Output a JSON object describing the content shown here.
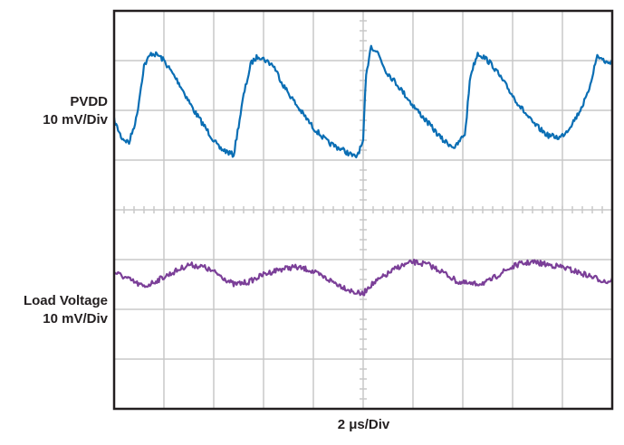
{
  "labels": {
    "pvdd_name": "PVDD",
    "pvdd_scale": "10 mV/Div",
    "load_name": "Load Voltage",
    "load_scale": "10 mV/Div",
    "time_scale": "2 μs/Div"
  },
  "colors": {
    "pvdd": "#0a6eb4",
    "load": "#7b3f98",
    "grid": "#c8c8c8",
    "frame": "#231f20"
  },
  "chart_data": {
    "type": "line",
    "title": "",
    "xlabel": "2 μs/Div",
    "grid": true,
    "x_divisions": 10,
    "y_divisions": 8,
    "series": [
      {
        "name": "PVDD",
        "scale": "10 mV/Div",
        "x": [
          0,
          0.15,
          0.3,
          0.45,
          0.6,
          0.75,
          0.9,
          1.0,
          1.3,
          1.6,
          1.9,
          2.1,
          2.4,
          2.6,
          2.75,
          2.9,
          3.05,
          3.2,
          3.4,
          3.7,
          4.0,
          4.3,
          4.6,
          4.85,
          5.0,
          5.05,
          5.15,
          5.3,
          5.45,
          5.7,
          6.0,
          6.3,
          6.6,
          6.85,
          7.05,
          7.15,
          7.3,
          7.45,
          7.6,
          7.8,
          8.1,
          8.4,
          8.7,
          8.95,
          9.1,
          9.3,
          9.5,
          9.7,
          9.9,
          10.0
        ],
        "y": [
          5.8,
          5.45,
          5.35,
          5.85,
          6.9,
          7.15,
          7.1,
          7.0,
          6.55,
          6.0,
          5.55,
          5.25,
          5.1,
          6.3,
          6.95,
          7.1,
          7.0,
          6.9,
          6.5,
          6.05,
          5.65,
          5.35,
          5.2,
          5.05,
          5.35,
          6.6,
          7.3,
          7.15,
          6.8,
          6.5,
          6.1,
          5.75,
          5.4,
          5.25,
          5.55,
          6.7,
          7.15,
          7.05,
          6.9,
          6.6,
          6.15,
          5.75,
          5.5,
          5.45,
          5.6,
          5.9,
          6.3,
          7.1,
          6.95,
          7.0
        ]
      },
      {
        "name": "Load Voltage",
        "scale": "10 mV/Div",
        "x": [
          0,
          0.3,
          0.6,
          0.9,
          1.2,
          1.5,
          1.8,
          2.1,
          2.4,
          2.7,
          3.0,
          3.3,
          3.6,
          3.9,
          4.2,
          4.5,
          4.8,
          5.0,
          5.1,
          5.4,
          5.7,
          6.0,
          6.3,
          6.6,
          6.9,
          7.2,
          7.5,
          7.8,
          8.1,
          8.4,
          8.7,
          9.0,
          9.3,
          9.6,
          9.9,
          10.0
        ],
        "y": [
          2.75,
          2.6,
          2.45,
          2.6,
          2.75,
          2.9,
          2.85,
          2.7,
          2.5,
          2.55,
          2.7,
          2.8,
          2.85,
          2.8,
          2.65,
          2.5,
          2.35,
          2.3,
          2.45,
          2.65,
          2.85,
          2.95,
          2.9,
          2.75,
          2.55,
          2.5,
          2.55,
          2.75,
          2.9,
          2.95,
          2.9,
          2.85,
          2.75,
          2.65,
          2.55,
          2.6
        ]
      }
    ]
  }
}
